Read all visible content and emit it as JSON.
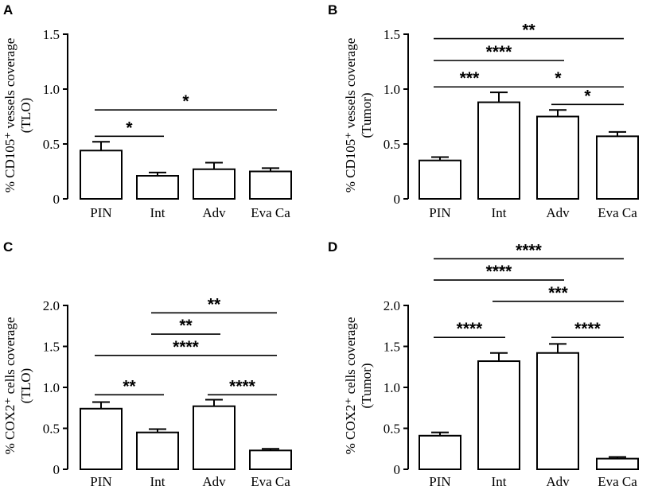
{
  "chart_data": [
    {
      "panel": "A",
      "type": "bar",
      "categories": [
        "PIN",
        "Int",
        "Adv",
        "Eva Ca"
      ],
      "values": [
        0.44,
        0.21,
        0.27,
        0.25
      ],
      "errors": [
        0.08,
        0.03,
        0.06,
        0.03
      ],
      "ylim": [
        0,
        1.5
      ],
      "yticks": [
        "0",
        "0.5",
        "1.0",
        "1.5"
      ],
      "ylabel_line1": "% CD105⁺ vessels coverage",
      "ylabel_line2": "(TLO)",
      "xlabel": "",
      "significance": [
        {
          "from": 0,
          "to": 1,
          "y": 0.57,
          "label": "*"
        },
        {
          "from": 0,
          "to": 3,
          "y": 0.81,
          "label": "*"
        }
      ]
    },
    {
      "panel": "B",
      "type": "bar",
      "categories": [
        "PIN",
        "Int",
        "Adv",
        "Eva Ca"
      ],
      "values": [
        0.35,
        0.88,
        0.75,
        0.57
      ],
      "errors": [
        0.03,
        0.09,
        0.06,
        0.04
      ],
      "ylim": [
        0,
        1.5
      ],
      "yticks": [
        "0",
        "0.5",
        "1.0",
        "1.5"
      ],
      "ylabel_line1": "% CD105⁺ vessels coverage",
      "ylabel_line2": "(Tumor)",
      "xlabel": "",
      "significance": [
        {
          "from": 0,
          "to": 3,
          "y": 1.46,
          "label": "**"
        },
        {
          "from": 0,
          "to": 2,
          "y": 1.26,
          "label": "****"
        },
        {
          "from": 0,
          "to": 1,
          "y": 1.02,
          "label": "***"
        },
        {
          "from": 1,
          "to": 3,
          "y": 1.02,
          "label": "*"
        },
        {
          "from": 2,
          "to": 3,
          "y": 0.86,
          "label": "*"
        }
      ]
    },
    {
      "panel": "C",
      "type": "bar",
      "categories": [
        "PIN",
        "Int",
        "Adv",
        "Eva Ca"
      ],
      "values": [
        0.74,
        0.45,
        0.77,
        0.23
      ],
      "errors": [
        0.08,
        0.04,
        0.08,
        0.02
      ],
      "ylim": [
        0,
        2.0
      ],
      "yticks": [
        "0",
        "0.5",
        "1.0",
        "1.5",
        "2.0"
      ],
      "ylabel_line1": "% COX2⁺ cells coverage",
      "ylabel_line2": "(TLO)",
      "xlabel": "",
      "significance": [
        {
          "from": 1,
          "to": 3,
          "y": 1.91,
          "label": "**"
        },
        {
          "from": 1,
          "to": 2,
          "y": 1.65,
          "label": "**"
        },
        {
          "from": 0,
          "to": 3,
          "y": 1.39,
          "label": "****"
        },
        {
          "from": 0,
          "to": 1,
          "y": 0.91,
          "label": "**"
        },
        {
          "from": 2,
          "to": 3,
          "y": 0.91,
          "label": "****"
        }
      ]
    },
    {
      "panel": "D",
      "type": "bar",
      "categories": [
        "PIN",
        "Int",
        "Adv",
        "Eva Ca"
      ],
      "values": [
        0.41,
        1.32,
        1.42,
        0.13
      ],
      "errors": [
        0.04,
        0.1,
        0.11,
        0.02
      ],
      "ylim": [
        0,
        2.0
      ],
      "yticks": [
        "0",
        "0.5",
        "1.0",
        "1.5",
        "2.0"
      ],
      "ylabel_line1": "% COX2⁺ cells coverage",
      "ylabel_line2": "(Tumor)",
      "xlabel": "",
      "significance": [
        {
          "from": 0,
          "to": 3,
          "y": 2.57,
          "label": "****"
        },
        {
          "from": 0,
          "to": 2,
          "y": 2.31,
          "label": "****"
        },
        {
          "from": 1,
          "to": 3,
          "y": 2.05,
          "label": "***"
        },
        {
          "from": 0,
          "to": 1,
          "y": 1.61,
          "label": "****"
        },
        {
          "from": 2,
          "to": 3,
          "y": 1.61,
          "label": "****"
        }
      ]
    }
  ]
}
